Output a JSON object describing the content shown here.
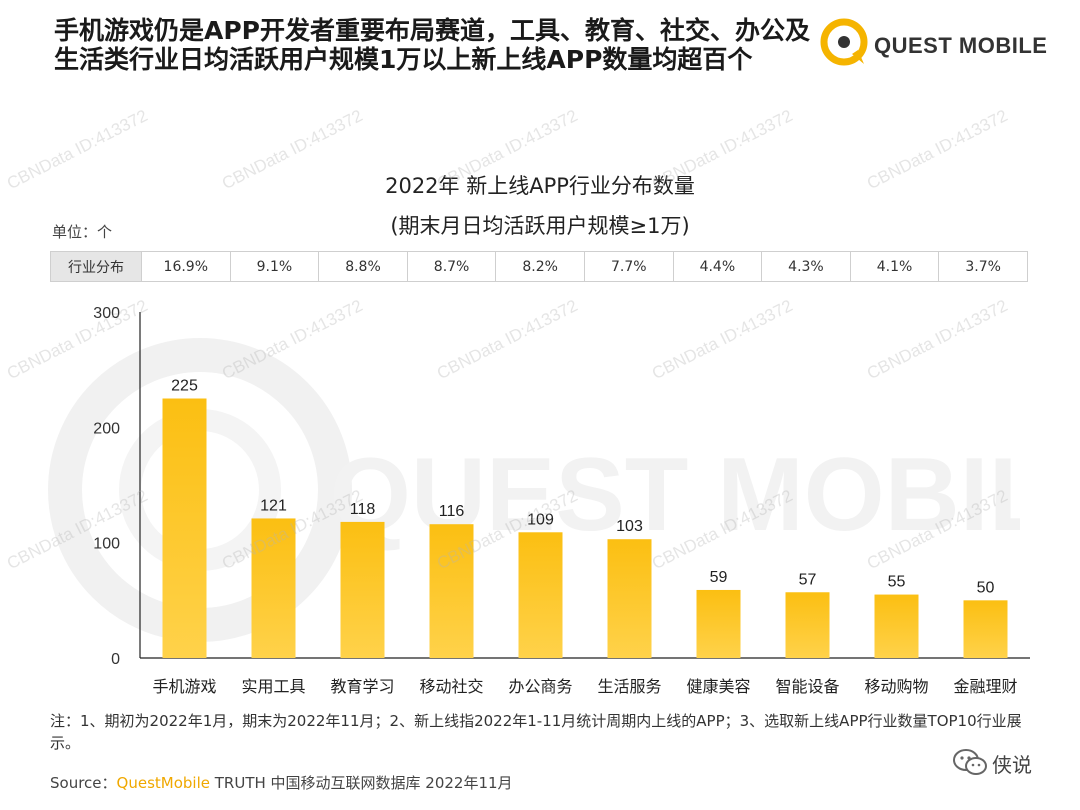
{
  "header": {
    "title": "手机游戏仍是APP开发者重要布局赛道，工具、教育、社交、办公及生活类行业日均活跃用户规模1万以上新上线APP数量均超百个",
    "brand": "QUEST MOBILE"
  },
  "chart_header": {
    "title_line1": "2022年 新上线APP行业分布数量",
    "title_line2": "(期末月日均活跃用户规模≥1万)",
    "unit": "单位：个"
  },
  "distribution": {
    "label": "行业分布",
    "values": [
      "16.9%",
      "9.1%",
      "8.8%",
      "8.7%",
      "8.2%",
      "7.7%",
      "4.4%",
      "4.3%",
      "4.1%",
      "3.7%"
    ]
  },
  "chart_data": {
    "type": "bar",
    "title": "2022年 新上线APP行业分布数量",
    "subtitle": "(期末月日均活跃用户规模≥1万)",
    "xlabel": "",
    "ylabel": "单位：个",
    "categories": [
      "手机游戏",
      "实用工具",
      "教育学习",
      "移动社交",
      "办公商务",
      "生活服务",
      "健康美容",
      "智能设备",
      "移动购物",
      "金融理财"
    ],
    "values": [
      225,
      121,
      118,
      116,
      109,
      103,
      59,
      57,
      55,
      50
    ],
    "ylim": [
      0,
      300
    ],
    "yticks": [
      0,
      100,
      200,
      300
    ],
    "bar_color": "#fbbf12"
  },
  "footer": {
    "notes": "注：1、期初为2022年1月，期末为2022年11月；2、新上线指2022年1-11月统计周期内上线的APP；3、选取新上线APP行业数量TOP10行业展示。",
    "source_prefix": "Source：",
    "source_brand": "QuestMobile",
    "source_rest": " TRUTH 中国移动互联网数据库 2022年11月",
    "wechat_label": "侠说"
  },
  "watermark": {
    "text": "CBNData ID:413372",
    "background_logo": "QUEST MOBILE"
  }
}
